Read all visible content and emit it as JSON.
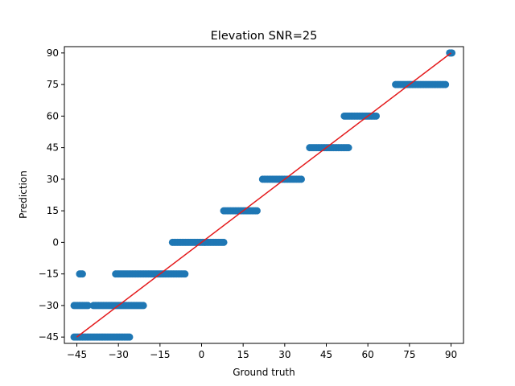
{
  "chart_data": {
    "type": "scatter",
    "title": "Elevation SNR=25",
    "xlabel": "Ground truth",
    "ylabel": "Prediction",
    "xlim": [
      -49.5,
      94.5
    ],
    "ylim": [
      -48,
      93
    ],
    "xticks": [
      -45,
      -30,
      -15,
      0,
      15,
      30,
      45,
      60,
      75,
      90
    ],
    "yticks": [
      -45,
      -30,
      -15,
      0,
      15,
      30,
      45,
      60,
      75,
      90
    ],
    "grid": false,
    "colors": {
      "points": "#1f77b4",
      "line": "#e41a1c"
    },
    "series": [
      {
        "type": "scatter",
        "segments": [
          {
            "y": 90,
            "xmin": 89.5,
            "xmax": 90.3
          },
          {
            "y": 75,
            "xmin": 70,
            "xmax": 88
          },
          {
            "y": 60,
            "xmin": 51.5,
            "xmax": 63
          },
          {
            "y": 45,
            "xmin": 39,
            "xmax": 53
          },
          {
            "y": 30,
            "xmin": 22,
            "xmax": 36
          },
          {
            "y": 15,
            "xmin": 8,
            "xmax": 20
          },
          {
            "y": 0,
            "xmin": -10.5,
            "xmax": 8
          },
          {
            "y": -15,
            "xmin": -44,
            "xmax": -43
          },
          {
            "y": -15,
            "xmin": -31,
            "xmax": -6
          },
          {
            "y": -30,
            "xmin": -46,
            "xmax": -41
          },
          {
            "y": -30,
            "xmin": -39,
            "xmax": -21
          },
          {
            "y": -45,
            "xmin": -46,
            "xmax": -26
          }
        ]
      },
      {
        "type": "line",
        "x": [
          -45,
          90
        ],
        "y": [
          -45,
          90
        ]
      }
    ]
  }
}
